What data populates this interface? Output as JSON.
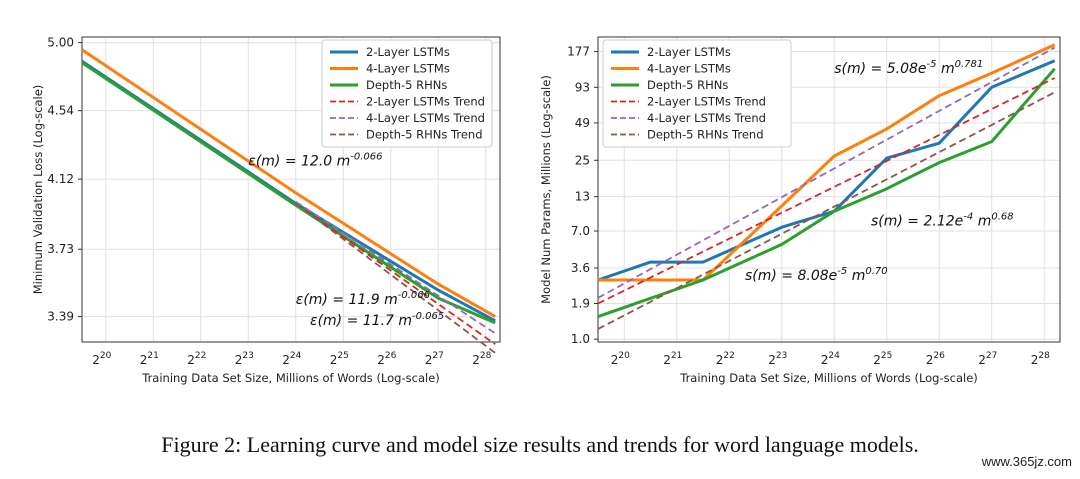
{
  "caption": "Figure 2: Learning curve and model size results and trends for word language models.",
  "watermark": "www.365jz.com",
  "chart_data": [
    {
      "type": "line",
      "title": "",
      "xlabel": "Training Data Set Size, Millions of Words (Log-scale)",
      "ylabel": "Minimum Validation Loss (Log-scale)",
      "x_scale": "log2",
      "y_scale": "log",
      "xlim_exp": [
        19.5,
        28.3
      ],
      "ylim": [
        3.27,
        5.04
      ],
      "grid": true,
      "legend_position": "top-right",
      "x_ticks": [
        20,
        21,
        22,
        23,
        24,
        25,
        26,
        27,
        28
      ],
      "y_ticks": [
        "3.39",
        "3.73",
        "4.12",
        "4.54",
        "5.00"
      ],
      "series": [
        {
          "name": "2-Layer LSTMs",
          "color": "#1f77b4",
          "style": "solid",
          "points": [
            [
              19.5,
              4.87
            ],
            [
              24.0,
              3.98
            ],
            [
              27.0,
              3.52
            ],
            [
              28.2,
              3.37
            ]
          ]
        },
        {
          "name": "4-Layer LSTMs",
          "color": "#ff7f0e",
          "style": "solid",
          "points": [
            [
              19.5,
              4.95
            ],
            [
              24.0,
              4.04
            ],
            [
              27.0,
              3.55
            ],
            [
              28.2,
              3.39
            ]
          ]
        },
        {
          "name": "Depth-5 RHNs",
          "color": "#2ca02c",
          "style": "solid",
          "points": [
            [
              19.5,
              4.86
            ],
            [
              24.0,
              3.97
            ],
            [
              27.0,
              3.48
            ],
            [
              28.2,
              3.36
            ]
          ]
        },
        {
          "name": "2-Layer LSTMs Trend",
          "color": "#d62728",
          "style": "dashed",
          "points": [
            [
              24.0,
              3.98
            ],
            [
              28.2,
              3.26
            ]
          ]
        },
        {
          "name": "4-Layer LSTMs Trend",
          "color": "#9467bd",
          "style": "dashed",
          "points": [
            [
              24.0,
              3.99
            ],
            [
              28.2,
              3.31
            ]
          ]
        },
        {
          "name": "Depth-5 RHNs Trend",
          "color": "#8c564b",
          "style": "dashed",
          "points": [
            [
              24.0,
              3.98
            ],
            [
              28.2,
              3.22
            ]
          ]
        }
      ],
      "annotations": [
        {
          "prefix": "ε(m) = 12.0 m",
          "exp": "-0.066",
          "at": [
            23.0,
            4.2
          ]
        },
        {
          "prefix": "ε(m) = 11.9 m",
          "exp": "-0.066",
          "at": [
            24.0,
            3.45
          ]
        },
        {
          "prefix": "ε(m) = 11.7 m",
          "exp": "-0.065",
          "at": [
            24.3,
            3.35
          ]
        }
      ]
    },
    {
      "type": "line",
      "title": "",
      "xlabel": "Training Data Set Size, Millions of Words (Log-scale)",
      "ylabel": "Model Num Params, Millions (Log-scale)",
      "x_scale": "log2",
      "y_scale": "log",
      "xlim_exp": [
        19.5,
        28.3
      ],
      "ylim": [
        0.95,
        230
      ],
      "grid": true,
      "legend_position": "top-left",
      "x_ticks": [
        20,
        21,
        22,
        23,
        24,
        25,
        26,
        27,
        28
      ],
      "y_ticks": [
        "1.0",
        "1.9",
        "3.6",
        "7.0",
        "13",
        "25",
        "49",
        "93",
        "177"
      ],
      "series": [
        {
          "name": "2-Layer LSTMs",
          "color": "#1f77b4",
          "style": "solid",
          "points": [
            [
              19.5,
              2.9
            ],
            [
              20.5,
              4.0
            ],
            [
              21.5,
              4.0
            ],
            [
              23.0,
              7.5
            ],
            [
              24.0,
              10.0
            ],
            [
              25.0,
              26
            ],
            [
              26.0,
              34
            ],
            [
              27.0,
              93
            ],
            [
              28.2,
              150
            ]
          ]
        },
        {
          "name": "4-Layer LSTMs",
          "color": "#ff7f0e",
          "style": "solid",
          "points": [
            [
              19.5,
              2.9
            ],
            [
              21.5,
              2.9
            ],
            [
              23.0,
              11.0
            ],
            [
              24.0,
              27
            ],
            [
              25.0,
              44
            ],
            [
              26.0,
              80
            ],
            [
              27.0,
              120
            ],
            [
              28.2,
              200
            ]
          ]
        },
        {
          "name": "Depth-5 RHNs",
          "color": "#2ca02c",
          "style": "solid",
          "points": [
            [
              19.5,
              1.5
            ],
            [
              21.5,
              2.9
            ],
            [
              23.0,
              5.5
            ],
            [
              24.0,
              10.0
            ],
            [
              25.0,
              15.0
            ],
            [
              26.0,
              24
            ],
            [
              27.0,
              35
            ],
            [
              28.2,
              130
            ]
          ]
        },
        {
          "name": "2-Layer LSTMs Trend",
          "color": "#d62728",
          "style": "dashed",
          "points": [
            [
              19.5,
              1.9
            ],
            [
              28.2,
              110
            ]
          ]
        },
        {
          "name": "4-Layer LSTMs Trend",
          "color": "#9467bd",
          "style": "dashed",
          "points": [
            [
              19.5,
              2.1
            ],
            [
              28.2,
              190
            ]
          ]
        },
        {
          "name": "Depth-5 RHNs Trend",
          "color": "#8c564b",
          "style": "dashed",
          "points": [
            [
              19.5,
              1.2
            ],
            [
              28.2,
              85
            ]
          ]
        }
      ],
      "annotations": [
        {
          "prefix": "s(m) = 5.08e",
          "mid_exp": "-5",
          "mid": " m",
          "exp": "0.781",
          "at": [
            24.0,
            120
          ]
        },
        {
          "prefix": "s(m) = 2.12e",
          "mid_exp": "-4",
          "mid": " m",
          "exp": "0.68",
          "at": [
            24.7,
            7.7
          ]
        },
        {
          "prefix": "s(m) = 8.08e",
          "mid_exp": "-5",
          "mid": " m",
          "exp": "0.70",
          "at": [
            22.3,
            2.9
          ]
        }
      ]
    }
  ]
}
